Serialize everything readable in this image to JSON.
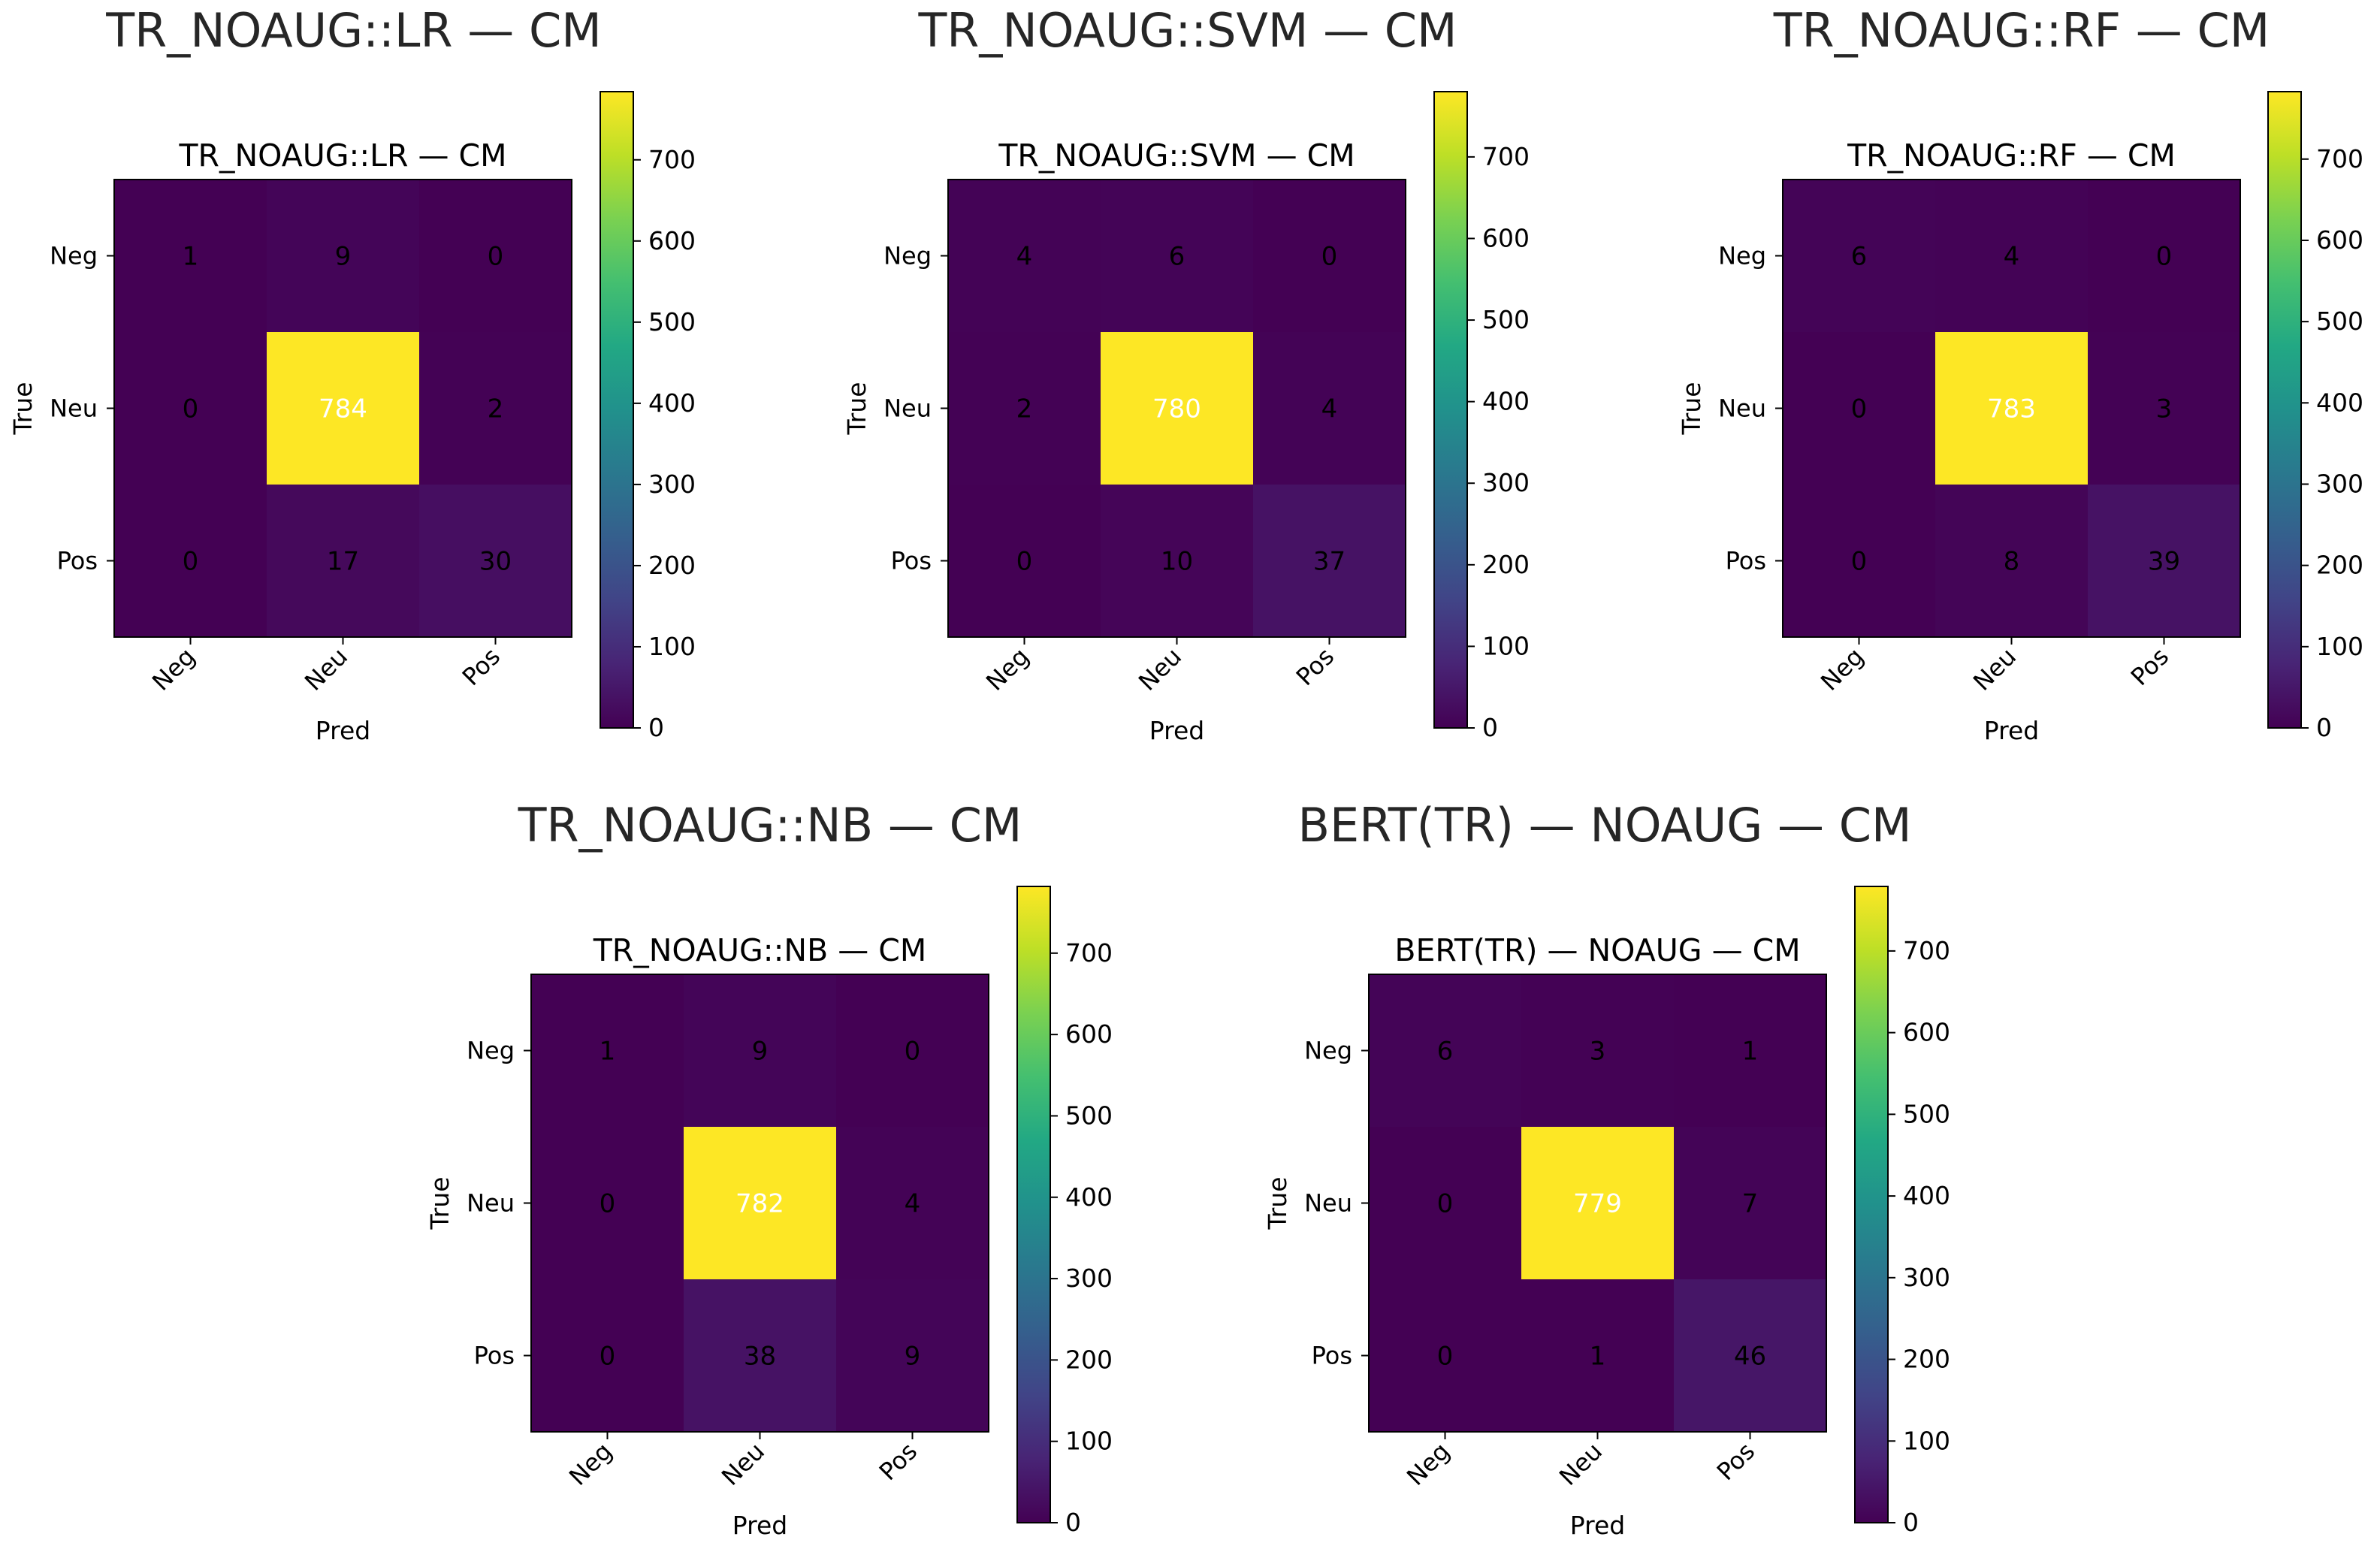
{
  "colors": {
    "viridis_low": "#440154",
    "viridis_high": "#fde725",
    "text_dark": "#000000",
    "text_light": "#ffffff"
  },
  "chart_data": [
    {
      "type": "heatmap",
      "figure_title": "TR_NOAUG::LR — CM",
      "title": "TR_NOAUG::LR — CM",
      "xlabel": "Pred",
      "ylabel": "True",
      "x_categories": [
        "Neg",
        "Neu",
        "Pos"
      ],
      "y_categories": [
        "Neg",
        "Neu",
        "Pos"
      ],
      "values": [
        [
          1,
          9,
          0
        ],
        [
          0,
          784,
          2
        ],
        [
          0,
          17,
          30
        ]
      ],
      "colorbar": {
        "min": 0,
        "max": 784,
        "ticks": [
          0,
          100,
          200,
          300,
          400,
          500,
          600,
          700
        ]
      }
    },
    {
      "type": "heatmap",
      "figure_title": "TR_NOAUG::SVM — CM",
      "title": "TR_NOAUG::SVM — CM",
      "xlabel": "Pred",
      "ylabel": "True",
      "x_categories": [
        "Neg",
        "Neu",
        "Pos"
      ],
      "y_categories": [
        "Neg",
        "Neu",
        "Pos"
      ],
      "values": [
        [
          4,
          6,
          0
        ],
        [
          2,
          780,
          4
        ],
        [
          0,
          10,
          37
        ]
      ],
      "colorbar": {
        "min": 0,
        "max": 780,
        "ticks": [
          0,
          100,
          200,
          300,
          400,
          500,
          600,
          700
        ]
      }
    },
    {
      "type": "heatmap",
      "figure_title": "TR_NOAUG::RF — CM",
      "title": "TR_NOAUG::RF — CM",
      "xlabel": "Pred",
      "ylabel": "True",
      "x_categories": [
        "Neg",
        "Neu",
        "Pos"
      ],
      "y_categories": [
        "Neg",
        "Neu",
        "Pos"
      ],
      "values": [
        [
          6,
          4,
          0
        ],
        [
          0,
          783,
          3
        ],
        [
          0,
          8,
          39
        ]
      ],
      "colorbar": {
        "min": 0,
        "max": 783,
        "ticks": [
          0,
          100,
          200,
          300,
          400,
          500,
          600,
          700
        ]
      }
    },
    {
      "type": "heatmap",
      "figure_title": "TR_NOAUG::NB — CM",
      "title": "TR_NOAUG::NB — CM",
      "xlabel": "Pred",
      "ylabel": "True",
      "x_categories": [
        "Neg",
        "Neu",
        "Pos"
      ],
      "y_categories": [
        "Neg",
        "Neu",
        "Pos"
      ],
      "values": [
        [
          1,
          9,
          0
        ],
        [
          0,
          782,
          4
        ],
        [
          0,
          38,
          9
        ]
      ],
      "colorbar": {
        "min": 0,
        "max": 782,
        "ticks": [
          0,
          100,
          200,
          300,
          400,
          500,
          600,
          700
        ]
      }
    },
    {
      "type": "heatmap",
      "figure_title": "BERT(TR) — NOAUG — CM",
      "title": "BERT(TR) — NOAUG — CM",
      "xlabel": "Pred",
      "ylabel": "True",
      "x_categories": [
        "Neg",
        "Neu",
        "Pos"
      ],
      "y_categories": [
        "Neg",
        "Neu",
        "Pos"
      ],
      "values": [
        [
          6,
          3,
          1
        ],
        [
          0,
          779,
          7
        ],
        [
          0,
          1,
          46
        ]
      ],
      "colorbar": {
        "min": 0,
        "max": 779,
        "ticks": [
          0,
          100,
          200,
          300,
          400,
          500,
          600,
          700
        ]
      }
    }
  ]
}
